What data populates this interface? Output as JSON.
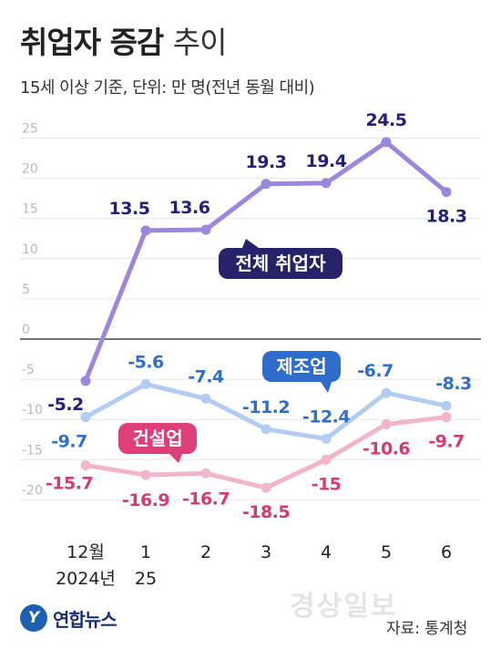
{
  "title_main": "취업자 증감",
  "title_sub": "추이",
  "subtitle": "15세 이상 기준, 단위: 만 명(전년 동월 대비)",
  "source": "자료: 통계청",
  "publisher": "연합뉴스",
  "publisher_mark": "Y",
  "watermark": "경상일보",
  "colors": {
    "total": "#9b87dd",
    "manufacturing": "#b3cdf2",
    "construction": "#f3b6c9",
    "total_label": "#231f7a",
    "manufacturing_label": "#2f6fc9",
    "construction_label": "#d63a71",
    "total_badge": "#27236b",
    "manufacturing_badge": "#2e6dcc",
    "construction_badge": "#de3f79"
  },
  "chart_data": {
    "type": "line",
    "categories": [
      "12월\n2024년",
      "1\n25",
      "2",
      "3",
      "4",
      "5",
      "6"
    ],
    "yticks": [
      25,
      20,
      15,
      10,
      5,
      0,
      -5,
      -10,
      -15,
      -20
    ],
    "ylim": [
      -22,
      27
    ],
    "grid": true,
    "series": [
      {
        "name": "전체 취업자",
        "values": [
          -5.2,
          13.5,
          13.6,
          19.3,
          19.4,
          24.5,
          18.3
        ]
      },
      {
        "name": "제조업",
        "values": [
          -9.7,
          -5.6,
          -7.4,
          -11.2,
          -12.4,
          -6.7,
          -8.3
        ]
      },
      {
        "name": "건설업",
        "values": [
          -15.7,
          -16.9,
          -16.7,
          -18.5,
          -15.0,
          -10.6,
          -9.7
        ]
      }
    ]
  }
}
